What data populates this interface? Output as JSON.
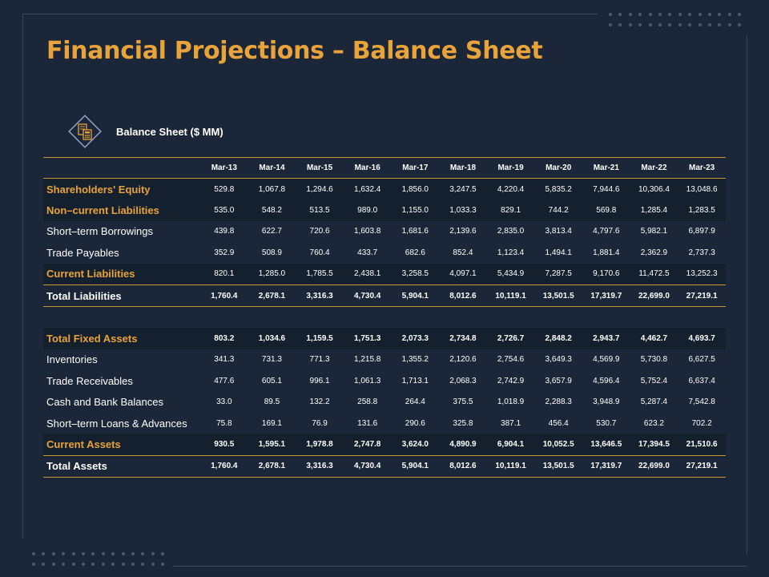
{
  "title": "Financial Projections – Balance Sheet",
  "subtitle": "Balance Sheet ($ MM)",
  "icon": "calculator-document-icon",
  "accent_color": "#e8a33a",
  "columns": [
    "Mar-13",
    "Mar-14",
    "Mar-15",
    "Mar-16",
    "Mar-17",
    "Mar-18",
    "Mar-19",
    "Mar-20",
    "Mar-21",
    "Mar-22",
    "Mar-23"
  ],
  "liabilities": [
    {
      "label": "Shareholders' Equity",
      "values": [
        "529.8",
        "1,067.8",
        "1,294.6",
        "1,632.4",
        "1,856.0",
        "3,247.5",
        "4,220.4",
        "5,835.2",
        "7,944.6",
        "10,306.4",
        "13,048.6"
      ]
    },
    {
      "label": "Non–current Liabilities",
      "values": [
        "535.0",
        "548.2",
        "513.5",
        "989.0",
        "1,155.0",
        "1,033.3",
        "829.1",
        "744.2",
        "569.8",
        "1,285.4",
        "1,283.5"
      ]
    },
    {
      "label": "Short–term Borrowings",
      "values": [
        "439.8",
        "622.7",
        "720.6",
        "1,603.8",
        "1,681.6",
        "2,139.6",
        "2,835.0",
        "3,813.4",
        "4,797.6",
        "5,982.1",
        "6,897.9"
      ]
    },
    {
      "label": "Trade Payables",
      "values": [
        "352.9",
        "508.9",
        "760.4",
        "433.7",
        "682.6",
        "852.4",
        "1,123.4",
        "1,494.1",
        "1,881.4",
        "2,362.9",
        "2,737.3"
      ]
    },
    {
      "label": "Current Liabilities",
      "values": [
        "820.1",
        "1,285.0",
        "1,785.5",
        "2,438.1",
        "3,258.5",
        "4,097.1",
        "5,434.9",
        "7,287.5",
        "9,170.6",
        "11,472.5",
        "13,252.3"
      ]
    },
    {
      "label": "Total Liabilities",
      "values": [
        "1,760.4",
        "2,678.1",
        "3,316.3",
        "4,730.4",
        "5,904.1",
        "8,012.6",
        "10,119.1",
        "13,501.5",
        "17,319.7",
        "22,699.0",
        "27,219.1"
      ]
    }
  ],
  "assets": [
    {
      "label": "Total Fixed Assets",
      "values": [
        "803.2",
        "1,034.6",
        "1,159.5",
        "1,751.3",
        "2,073.3",
        "2,734.8",
        "2,726.7",
        "2,848.2",
        "2,943.7",
        "4,462.7",
        "4,693.7"
      ]
    },
    {
      "label": "Inventories",
      "values": [
        "341.3",
        "731.3",
        "771.3",
        "1,215.8",
        "1,355.2",
        "2,120.6",
        "2,754.6",
        "3,649.3",
        "4,569.9",
        "5,730.8",
        "6,627.5"
      ]
    },
    {
      "label": "Trade Receivables",
      "values": [
        "477.6",
        "605.1",
        "996.1",
        "1,061.3",
        "1,713.1",
        "2,068.3",
        "2,742.9",
        "3,657.9",
        "4,596.4",
        "5,752.4",
        "6,637.4"
      ]
    },
    {
      "label": "Cash and Bank Balances",
      "values": [
        "33.0",
        "89.5",
        "132.2",
        "258.8",
        "264.4",
        "375.5",
        "1,018.9",
        "2,288.3",
        "3,948.9",
        "5,287.4",
        "7,542.8"
      ]
    },
    {
      "label": "Short–term Loans & Advances",
      "values": [
        "75.8",
        "169.1",
        "76.9",
        "131.6",
        "290.6",
        "325.8",
        "387.1",
        "456.4",
        "530.7",
        "623.2",
        "702.2"
      ]
    },
    {
      "label": "Current Assets",
      "values": [
        "930.5",
        "1,595.1",
        "1,978.8",
        "2,747.8",
        "3,624.0",
        "4,890.9",
        "6,904.1",
        "10,052.5",
        "13,646.5",
        "17,394.5",
        "21,510.6"
      ]
    },
    {
      "label": "Total Assets",
      "values": [
        "1,760.4",
        "2,678.1",
        "3,316.3",
        "4,730.4",
        "5,904.1",
        "8,012.6",
        "10,119.1",
        "13,501.5",
        "17,319.7",
        "22,699.0",
        "27,219.1"
      ]
    }
  ]
}
